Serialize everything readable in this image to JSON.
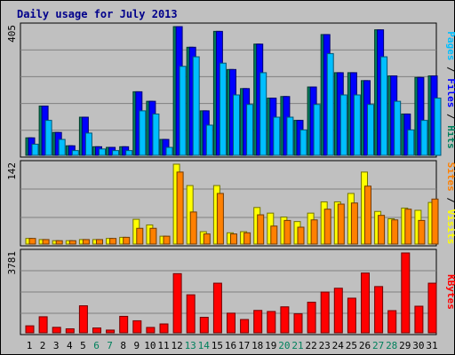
{
  "chart_data": [
    {
      "type": "bar",
      "title": "Daily usage for July 2013",
      "categories": [
        "1",
        "2",
        "3",
        "4",
        "5",
        "6",
        "7",
        "8",
        "9",
        "10",
        "11",
        "12",
        "13",
        "14",
        "15",
        "16",
        "17",
        "18",
        "19",
        "20",
        "21",
        "22",
        "23",
        "24",
        "25",
        "26",
        "27",
        "28",
        "29",
        "30",
        "31"
      ],
      "weekend_days": [
        "6",
        "7",
        "13",
        "14",
        "20",
        "21",
        "27",
        "28"
      ],
      "ymax_label": "405",
      "ylim": [
        0,
        405
      ],
      "series": [
        {
          "name": "Hits",
          "color": "#00805c",
          "values": [
            55,
            155,
            72,
            30,
            120,
            27,
            25,
            27,
            200,
            170,
            50,
            405,
            340,
            140,
            390,
            270,
            210,
            350,
            180,
            185,
            110,
            215,
            380,
            260,
            260,
            235,
            395,
            250,
            130,
            245,
            250
          ]
        },
        {
          "name": "Files",
          "color": "#0000ff",
          "values": [
            55,
            155,
            72,
            30,
            120,
            27,
            25,
            27,
            200,
            170,
            50,
            405,
            340,
            140,
            390,
            270,
            210,
            350,
            180,
            185,
            110,
            215,
            380,
            260,
            260,
            235,
            395,
            250,
            130,
            245,
            250
          ]
        },
        {
          "name": "Pages",
          "color": "#00bfff",
          "values": [
            35,
            110,
            50,
            15,
            70,
            20,
            15,
            15,
            140,
            130,
            25,
            280,
            310,
            95,
            290,
            190,
            160,
            260,
            120,
            120,
            80,
            160,
            320,
            190,
            190,
            160,
            310,
            170,
            80,
            110,
            180
          ]
        }
      ],
      "right_label": [
        {
          "text": "Pages",
          "color": "#00bfff"
        },
        {
          "text": " / ",
          "color": "#000000"
        },
        {
          "text": "Files",
          "color": "#0000ff"
        },
        {
          "text": " / ",
          "color": "#000000"
        },
        {
          "text": "Hits",
          "color": "#00805c"
        }
      ]
    },
    {
      "type": "bar",
      "ymax_label": "142",
      "ylim": [
        0,
        142
      ],
      "series": [
        {
          "name": "Visits",
          "color": "#ffff00",
          "values": [
            10,
            8,
            6,
            6,
            8,
            8,
            10,
            12,
            44,
            34,
            14,
            142,
            104,
            22,
            104,
            20,
            22,
            65,
            55,
            48,
            40,
            55,
            75,
            75,
            90,
            128,
            58,
            45,
            64,
            60,
            74
          ]
        },
        {
          "name": "Sites",
          "color": "#ff8000",
          "values": [
            10,
            8,
            6,
            6,
            8,
            8,
            10,
            12,
            28,
            28,
            14,
            128,
            57,
            18,
            90,
            18,
            20,
            52,
            32,
            42,
            30,
            43,
            62,
            71,
            73,
            103,
            51,
            43,
            62,
            42,
            80
          ]
        }
      ],
      "right_label": [
        {
          "text": "Sites",
          "color": "#ff8000"
        },
        {
          "text": " / ",
          "color": "#000000"
        },
        {
          "text": "Visits",
          "color": "#ffff00"
        }
      ]
    },
    {
      "type": "bar",
      "ymax_label": "3781",
      "ylim": [
        0,
        3781
      ],
      "series": [
        {
          "name": "KBytes",
          "color": "#ff0000",
          "values": [
            331,
            760,
            260,
            190,
            1280,
            230,
            130,
            780,
            570,
            255,
            420,
            2800,
            1800,
            735,
            2350,
            930,
            630,
            1060,
            1010,
            1230,
            900,
            1450,
            1930,
            2110,
            1640,
            2830,
            2190,
            1050,
            3781,
            1260,
            2350
          ]
        }
      ],
      "right_label": [
        {
          "text": "KBytes",
          "color": "#ff0000"
        }
      ]
    }
  ]
}
